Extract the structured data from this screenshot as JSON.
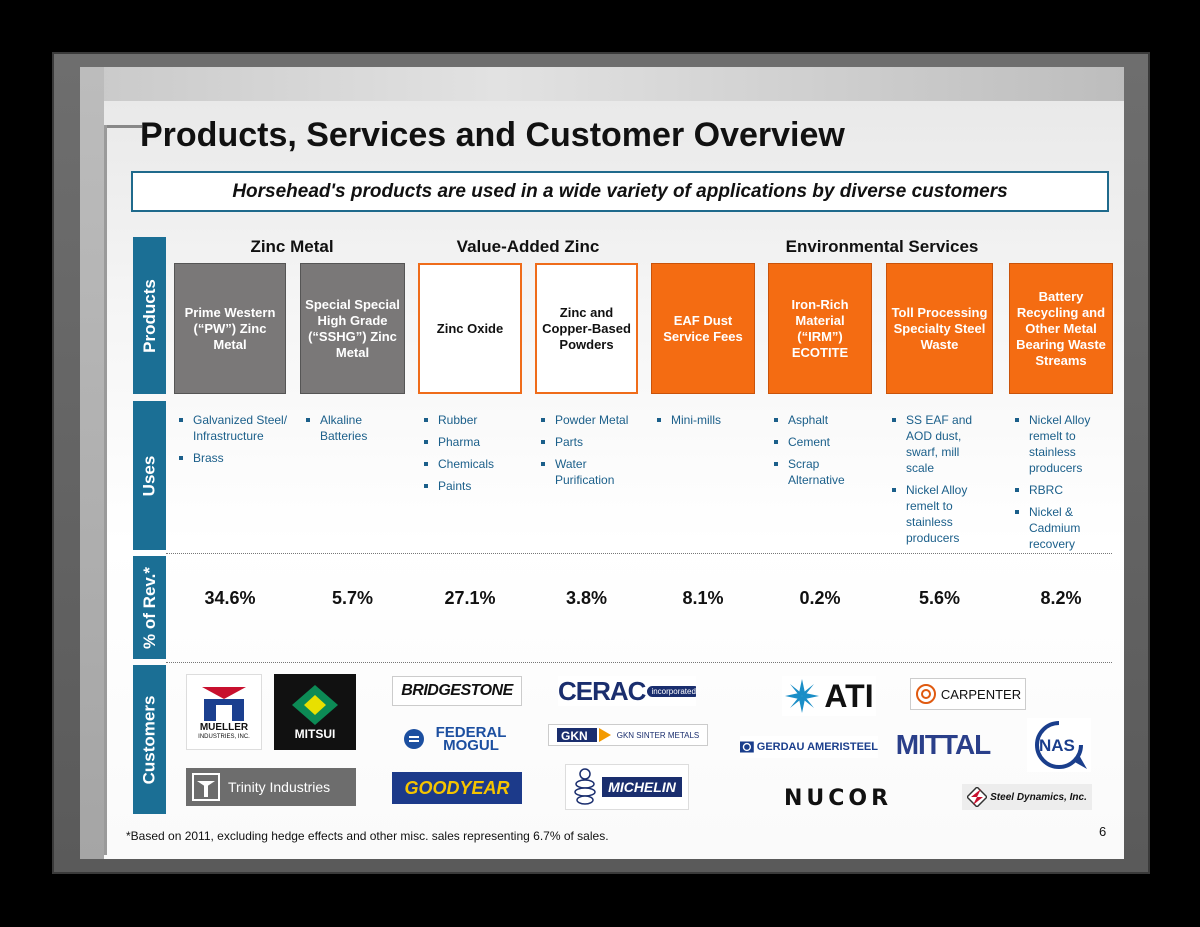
{
  "title": "Products, Services and Customer Overview",
  "subtitle": "Horsehead's products are used in a wide variety of applications by diverse customers",
  "row_labels": {
    "products": "Products",
    "uses": "Uses",
    "rev": "% of Rev.*",
    "customers": "Customers"
  },
  "categories": [
    "Zinc Metal",
    "Value-Added Zinc",
    "Environmental Services"
  ],
  "products": [
    {
      "name": "Prime Western (“PW”) Zinc Metal",
      "style": "gray",
      "uses": [
        "Galvanized Steel/ Infrastructure",
        "Brass"
      ],
      "rev": "34.6%"
    },
    {
      "name": "Special Special High Grade (“SSHG”) Zinc Metal",
      "style": "gray",
      "uses": [
        "Alkaline Batteries"
      ],
      "rev": "5.7%"
    },
    {
      "name": "Zinc Oxide",
      "style": "white",
      "uses": [
        "Rubber",
        "Pharma",
        "Chemicals",
        "Paints"
      ],
      "rev": "27.1%"
    },
    {
      "name": "Zinc and Copper-Based Powders",
      "style": "white",
      "uses": [
        "Powder Metal",
        "Parts",
        "Water Purification"
      ],
      "rev": "3.8%"
    },
    {
      "name": "EAF Dust Service Fees",
      "style": "orange",
      "uses": [
        "Mini-mills"
      ],
      "rev": "8.1%"
    },
    {
      "name": "Iron-Rich Material (“IRM”) ECOTITE",
      "style": "orange",
      "uses": [
        "Asphalt",
        "Cement",
        "Scrap Alternative"
      ],
      "rev": "0.2%"
    },
    {
      "name": "Toll Processing Specialty Steel Waste",
      "style": "orange",
      "uses": [
        "SS EAF and AOD dust, swarf, mill scale",
        "Nickel Alloy remelt to stainless producers"
      ],
      "rev": "5.6%"
    },
    {
      "name": "Battery Recycling and Other Metal Bearing Waste Streams",
      "style": "orange",
      "uses": [
        "Nickel Alloy remelt to stainless producers",
        "RBRC",
        "Nickel & Cadmium recovery"
      ],
      "rev": "8.2%"
    }
  ],
  "customers": {
    "mueller": "MUELLER",
    "mueller_sub": "INDUSTRIES, INC.",
    "mitsui": "MITSUI",
    "trinity": "Trinity Industries",
    "bridgestone": "BRIDGESTONE",
    "federal": "FEDERAL MOGUL",
    "goodyear": "GOODYEAR",
    "cerac": "CERAC",
    "cerac_sub": "incorporated",
    "gkn": "GKN SINTER METALS",
    "michelin": "MICHELIN",
    "ati": "ATI",
    "gerdau": "GERDAU AMERISTEEL",
    "nucor": "NUCOR",
    "carpenter": "CARPENTER",
    "mittal": "MITTAL",
    "nas": "NAS",
    "sdi": "Steel Dynamics, Inc."
  },
  "footnote": "*Based on 2011, excluding hedge effects and other misc. sales representing 6.7% of sales.",
  "page_number": "6",
  "colors": {
    "accent_blue": "#1b6f95",
    "orange": "#f46c12",
    "gray_box": "#7a7878"
  }
}
